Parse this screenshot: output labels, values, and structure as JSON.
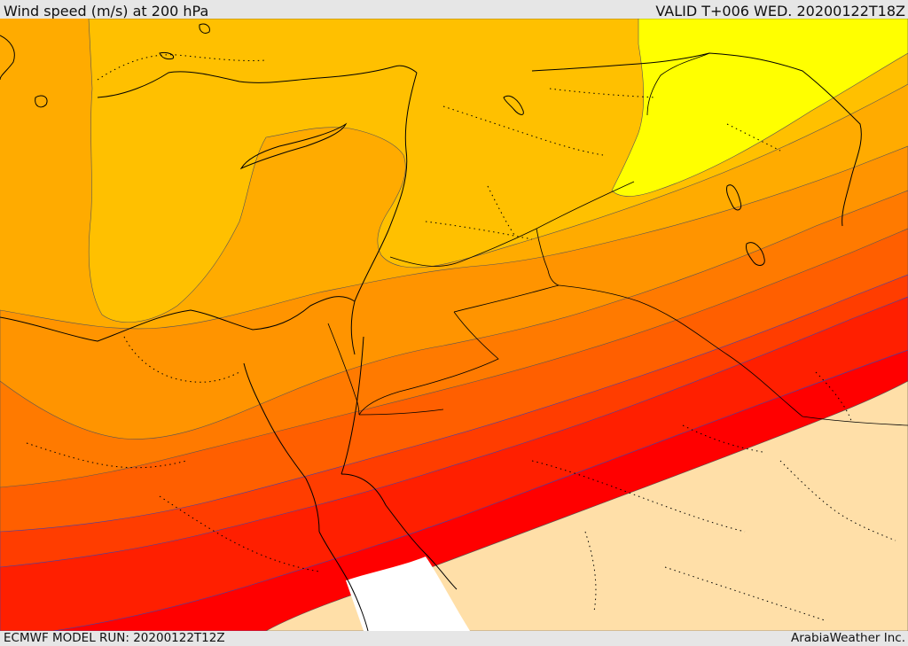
{
  "header": {
    "title": "Wind speed (m/s) at 200 hPa",
    "valid_time": "VALID T+006 WED. 20200122T18Z"
  },
  "footer": {
    "model_run": "ECMWF MODEL RUN: 20200122T12Z",
    "credit": "ArabiaWeather Inc."
  },
  "palette": {
    "yellow": "#ffff00",
    "gold": "#ffc000",
    "amber": "#ffab00",
    "orange": "#ff9400",
    "dark_orange": "#ff7a00",
    "orange_red": "#ff5f00",
    "red_orange": "#ff3d00",
    "red": "#ff1f00",
    "bright_red": "#ff0000",
    "land_low": "#ffdfa8",
    "no_data": "#ffffff"
  }
}
